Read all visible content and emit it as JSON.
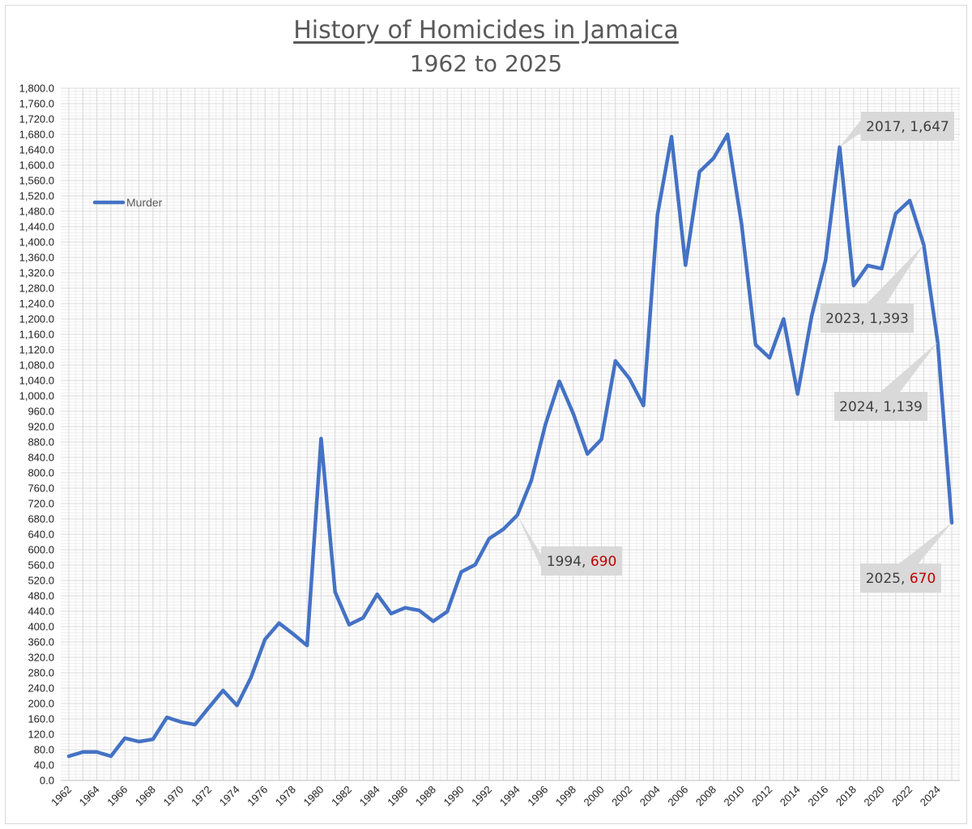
{
  "chart_data": {
    "type": "line",
    "title": "History of Homicides in Jamaica",
    "subtitle": "1962 to 2025",
    "xlabel": "",
    "ylabel": "",
    "ylim": [
      0,
      1800
    ],
    "ytick_step": 40,
    "ytick_format": "one_decimal_with_thousands_separator",
    "xlim": [
      1962,
      2025
    ],
    "xticks": [
      "1962",
      "1964",
      "1966",
      "1968",
      "1970",
      "1972",
      "1974",
      "1976",
      "1978",
      "1980",
      "1982",
      "1984",
      "1986",
      "1988",
      "1990",
      "1992",
      "1994",
      "1996",
      "1998",
      "2000",
      "2002",
      "2004",
      "2006",
      "2008",
      "2010",
      "2012",
      "2014",
      "2016",
      "2018",
      "2020",
      "2022",
      "2024"
    ],
    "grid": true,
    "minor_grid": true,
    "legend_position": "top-left",
    "series": [
      {
        "name": "Murder",
        "color": "#4472c4",
        "x": [
          1962,
          1963,
          1964,
          1965,
          1966,
          1967,
          1968,
          1969,
          1970,
          1971,
          1972,
          1973,
          1974,
          1975,
          1976,
          1977,
          1978,
          1979,
          1980,
          1981,
          1982,
          1983,
          1984,
          1985,
          1986,
          1987,
          1988,
          1989,
          1990,
          1991,
          1992,
          1993,
          1994,
          1995,
          1996,
          1997,
          1998,
          1999,
          2000,
          2001,
          2002,
          2003,
          2004,
          2005,
          2006,
          2007,
          2008,
          2009,
          2010,
          2011,
          2012,
          2013,
          2014,
          2015,
          2016,
          2017,
          2018,
          2019,
          2020,
          2021,
          2022,
          2023,
          2024,
          2025
        ],
        "values": [
          63,
          74,
          74,
          63,
          110,
          101,
          107,
          164,
          152,
          145,
          190,
          234,
          195,
          268,
          367,
          409,
          381,
          351,
          889,
          490,
          405,
          423,
          484,
          434,
          449,
          442,
          414,
          439,
          542,
          561,
          629,
          653,
          690,
          780,
          925,
          1038,
          953,
          849,
          887,
          1091,
          1045,
          975,
          1471,
          1674,
          1340,
          1583,
          1618,
          1680,
          1447,
          1133,
          1099,
          1200,
          1005,
          1207,
          1354,
          1647,
          1287,
          1339,
          1331,
          1474,
          1508,
          1393,
          1139,
          670
        ]
      }
    ],
    "annotations": [
      {
        "x": 1994,
        "y": 690,
        "label": "1994, ",
        "value": "690",
        "value_color": "#c00000"
      },
      {
        "x": 2017,
        "y": 1647,
        "label": "2017, 1,647"
      },
      {
        "x": 2023,
        "y": 1393,
        "label": "2023, 1,393"
      },
      {
        "x": 2024,
        "y": 1139,
        "label": "2024, 1,139"
      },
      {
        "x": 2025,
        "y": 670,
        "label": "2025, ",
        "value": "670",
        "value_color": "#c00000"
      }
    ],
    "colors": {
      "line": "#4472c4",
      "grid_major": "#d9d9d9",
      "grid_minor": "#eeeeee",
      "callout_fill": "#d9d9d9",
      "text": "#595959",
      "highlight": "#c00000"
    }
  }
}
